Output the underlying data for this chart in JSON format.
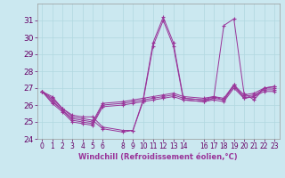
{
  "xlabel": "Windchill (Refroidissement éolien,°C)",
  "background_color": "#cbe8f0",
  "grid_color": "#b0d8e0",
  "line_color": "#993399",
  "ylim": [
    24,
    32
  ],
  "xlim": [
    -0.5,
    23.5
  ],
  "yticks": [
    24,
    25,
    26,
    27,
    28,
    29,
    30,
    31
  ],
  "xticks": [
    0,
    1,
    2,
    3,
    4,
    5,
    6,
    8,
    9,
    10,
    11,
    12,
    13,
    14,
    16,
    17,
    18,
    19,
    20,
    21,
    22,
    23
  ],
  "series": [
    {
      "x": [
        0,
        1,
        2,
        3,
        4,
        5,
        6,
        8,
        9,
        10,
        11,
        12,
        13,
        14,
        16,
        17,
        18,
        19,
        20,
        21,
        22,
        23
      ],
      "y": [
        26.8,
        26.5,
        25.8,
        25.4,
        25.3,
        25.3,
        24.7,
        24.5,
        24.5,
        26.3,
        29.7,
        31.2,
        29.7,
        26.4,
        26.3,
        26.5,
        26.3,
        27.2,
        26.4,
        26.5,
        27.0,
        27.1
      ]
    },
    {
      "x": [
        0,
        1,
        2,
        3,
        4,
        5,
        6,
        8,
        9,
        10,
        11,
        12,
        13,
        14,
        16,
        17,
        18,
        19,
        20,
        21,
        22,
        23
      ],
      "y": [
        26.8,
        26.4,
        25.8,
        25.3,
        25.2,
        25.1,
        24.6,
        24.4,
        24.5,
        26.2,
        29.5,
        31.0,
        29.5,
        26.3,
        26.2,
        26.4,
        30.7,
        31.1,
        26.7,
        26.3,
        27.0,
        27.1
      ]
    },
    {
      "x": [
        0,
        1,
        2,
        3,
        4,
        5,
        6,
        8,
        9,
        10,
        11,
        12,
        13,
        14,
        16,
        17,
        18,
        19,
        20,
        21,
        22,
        23
      ],
      "y": [
        26.8,
        26.3,
        25.7,
        25.2,
        25.1,
        25.0,
        26.1,
        26.2,
        26.3,
        26.4,
        26.5,
        26.6,
        26.7,
        26.5,
        26.4,
        26.5,
        26.4,
        27.2,
        26.6,
        26.7,
        27.0,
        27.0
      ]
    },
    {
      "x": [
        0,
        1,
        2,
        3,
        4,
        5,
        6,
        8,
        9,
        10,
        11,
        12,
        13,
        14,
        16,
        17,
        18,
        19,
        20,
        21,
        22,
        23
      ],
      "y": [
        26.8,
        26.2,
        25.7,
        25.1,
        25.0,
        24.9,
        26.0,
        26.1,
        26.2,
        26.3,
        26.4,
        26.5,
        26.6,
        26.4,
        26.3,
        26.4,
        26.3,
        27.1,
        26.5,
        26.6,
        26.9,
        26.9
      ]
    },
    {
      "x": [
        0,
        1,
        2,
        3,
        4,
        5,
        6,
        8,
        9,
        10,
        11,
        12,
        13,
        14,
        16,
        17,
        18,
        19,
        20,
        21,
        22,
        23
      ],
      "y": [
        26.8,
        26.1,
        25.6,
        25.0,
        24.9,
        24.8,
        25.9,
        26.0,
        26.1,
        26.2,
        26.3,
        26.4,
        26.5,
        26.3,
        26.2,
        26.3,
        26.2,
        27.0,
        26.4,
        26.5,
        26.8,
        26.8
      ]
    }
  ],
  "xlabel_fontsize": 6.0,
  "ytick_fontsize": 6.5,
  "xtick_fontsize": 5.5
}
